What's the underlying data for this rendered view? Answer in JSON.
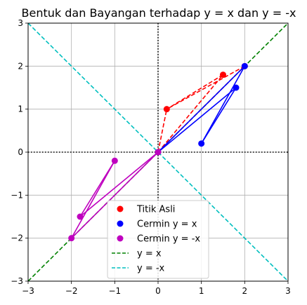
{
  "chart_data": {
    "type": "scatter",
    "title": "Bentuk dan Bayangan terhadap y = x dan y = -x",
    "xlabel": "",
    "ylabel": "",
    "xlim": [
      -3,
      3
    ],
    "ylim": [
      -3,
      3
    ],
    "xticks": [
      -3,
      -2,
      -1,
      0,
      1,
      2,
      3
    ],
    "yticks": [
      -3,
      -2,
      -1,
      0,
      1,
      2,
      3
    ],
    "xtick_labels": [
      "−3",
      "−2",
      "−1",
      "0",
      "1",
      "2",
      "3"
    ],
    "ytick_labels": [
      "−3",
      "−2",
      "−1",
      "0",
      "1",
      "2",
      "3"
    ],
    "grid": true,
    "legend_position": "lower-center",
    "series": [
      {
        "name": "Titik Asli",
        "color": "#ff0000",
        "line_style": "dashed",
        "points": [
          [
            0,
            0
          ],
          [
            2,
            2
          ],
          [
            1.5,
            1.8
          ],
          [
            0.2,
            1.0
          ]
        ],
        "segments": [
          [
            [
              0,
              0
            ],
            [
              2,
              2
            ]
          ],
          [
            [
              0,
              0
            ],
            [
              1.5,
              1.8
            ]
          ],
          [
            [
              2,
              2
            ],
            [
              0.2,
              1.0
            ]
          ],
          [
            [
              1.5,
              1.8
            ],
            [
              0.2,
              1.0
            ]
          ],
          [
            [
              0,
              0
            ],
            [
              0.2,
              1.0
            ]
          ]
        ]
      },
      {
        "name": "Cermin y = x",
        "color": "#0000ff",
        "line_style": "solid",
        "points": [
          [
            0,
            0
          ],
          [
            2,
            2
          ],
          [
            1.8,
            1.5
          ],
          [
            1.0,
            0.2
          ]
        ],
        "segments": [
          [
            [
              0,
              0
            ],
            [
              2,
              2
            ]
          ],
          [
            [
              0,
              0
            ],
            [
              1.8,
              1.5
            ]
          ],
          [
            [
              2,
              2
            ],
            [
              1.0,
              0.2
            ]
          ],
          [
            [
              1.8,
              1.5
            ],
            [
              1.0,
              0.2
            ]
          ]
        ]
      },
      {
        "name": "Cermin y = -x",
        "color": "#bf00bf",
        "line_style": "solid",
        "points": [
          [
            0,
            0
          ],
          [
            -2,
            -2
          ],
          [
            -1.8,
            -1.5
          ],
          [
            -1.0,
            -0.2
          ]
        ],
        "segments": [
          [
            [
              0,
              0
            ],
            [
              -2,
              -2
            ]
          ],
          [
            [
              0,
              0
            ],
            [
              -1.8,
              -1.5
            ]
          ],
          [
            [
              -2,
              -2
            ],
            [
              -1.0,
              -0.2
            ]
          ],
          [
            [
              -1.8,
              -1.5
            ],
            [
              -1.0,
              -0.2
            ]
          ]
        ]
      }
    ],
    "reference_lines": [
      {
        "name": "y = x",
        "color": "#008000",
        "slope": 1
      },
      {
        "name": "y = -x",
        "color": "#00bfbf",
        "slope": -1
      }
    ],
    "axis_lines": {
      "color": "#000000",
      "style": "dotted"
    }
  }
}
